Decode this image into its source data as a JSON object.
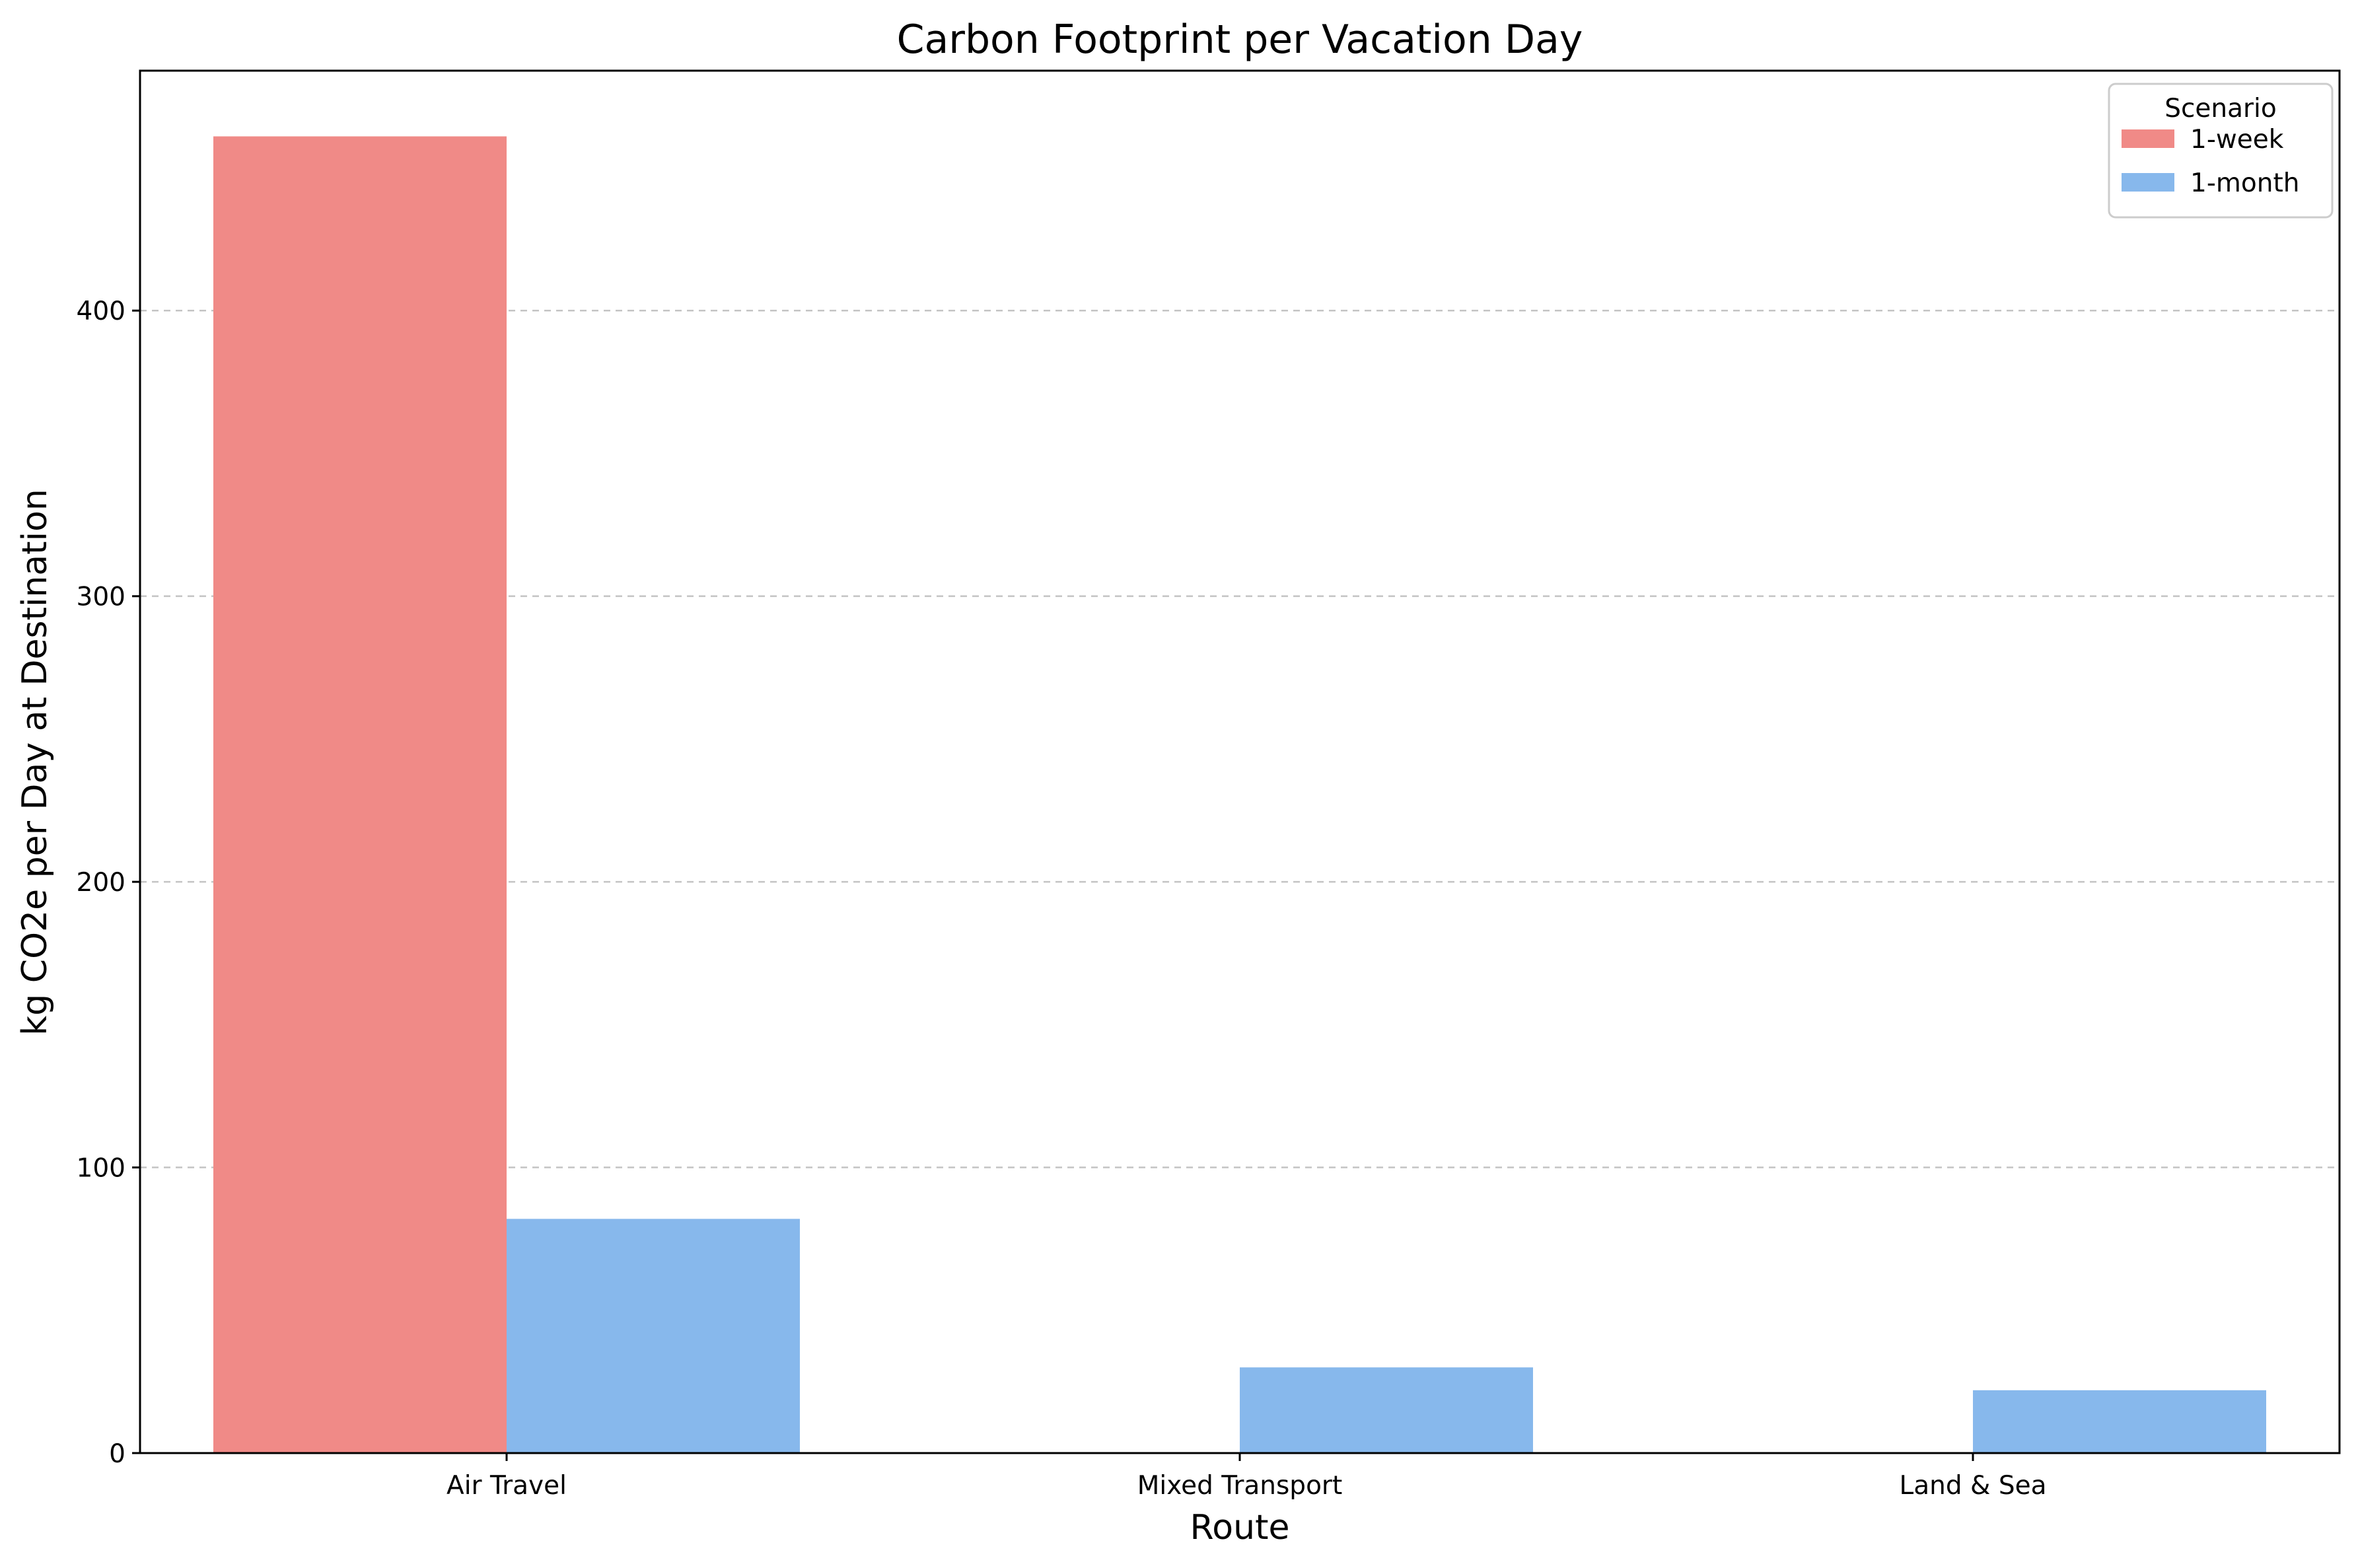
{
  "chart_data": {
    "type": "bar",
    "title": "Carbon Footprint per Vacation Day",
    "xlabel": "Route",
    "ylabel": "kg CO2e per Day at Destination",
    "categories": [
      "Air Travel",
      "Mixed Transport",
      "Land & Sea"
    ],
    "series": [
      {
        "name": "1-week",
        "color": "#f08a87",
        "values": [
          461,
          0,
          0
        ]
      },
      {
        "name": "1-month",
        "color": "#87b8ec",
        "values": [
          82,
          30,
          22
        ]
      }
    ],
    "ylim": [
      0,
      484
    ],
    "yticks": [
      0,
      100,
      200,
      300,
      400
    ],
    "grid": "y-dashed",
    "legend": {
      "title": "Scenario",
      "placement": "top-right"
    }
  }
}
